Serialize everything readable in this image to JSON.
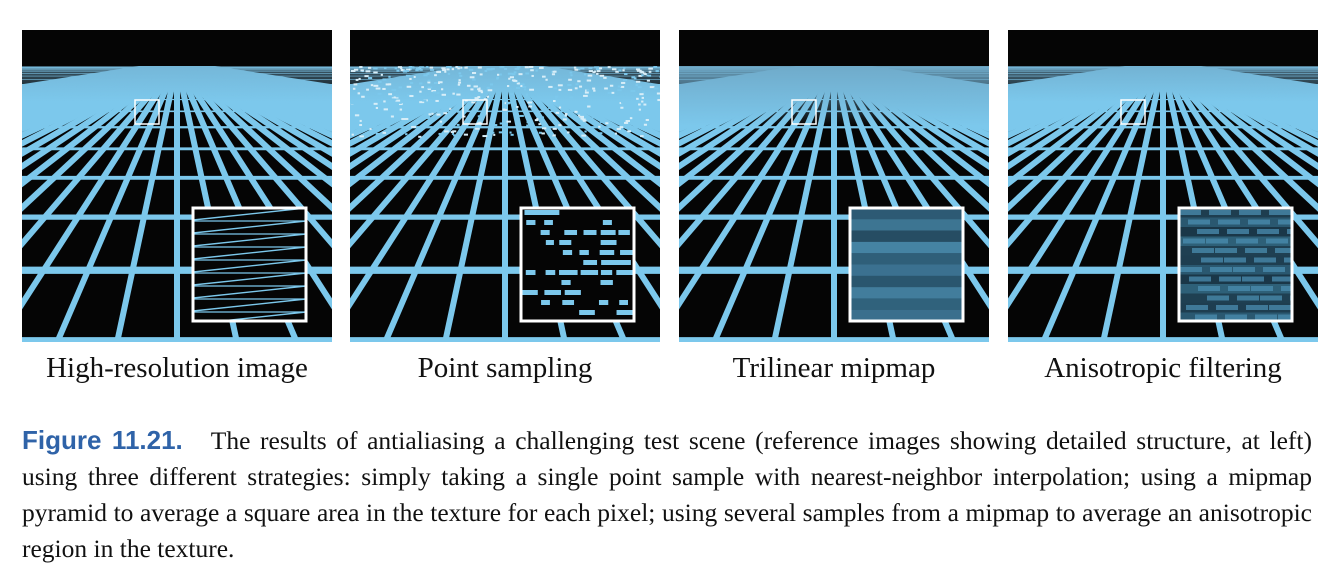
{
  "panels": [
    {
      "id": "high-res",
      "label": "High-resolution image",
      "inset": "sharp"
    },
    {
      "id": "point",
      "label": "Point sampling",
      "inset": "aliased"
    },
    {
      "id": "trilinear",
      "label": "Trilinear mipmap",
      "inset": "blurred"
    },
    {
      "id": "aniso",
      "label": "Anisotropic filtering",
      "inset": "aniso"
    }
  ],
  "colors": {
    "grid_line": "#7cc8ec",
    "background": "#050505",
    "horizon": "#6fa9c8",
    "figure_number": "#2f63a8"
  },
  "caption": {
    "figure_number": "Figure 11.21.",
    "text": "The results of antialiasing a challenging test scene (reference images showing detailed structure, at left) using three different strategies: simply taking a single point sample with nearest-neighbor interpolation; using a mipmap pyramid to average a square area in the texture for each pixel; using several samples from a mipmap to average an anisotropic region in the texture."
  }
}
